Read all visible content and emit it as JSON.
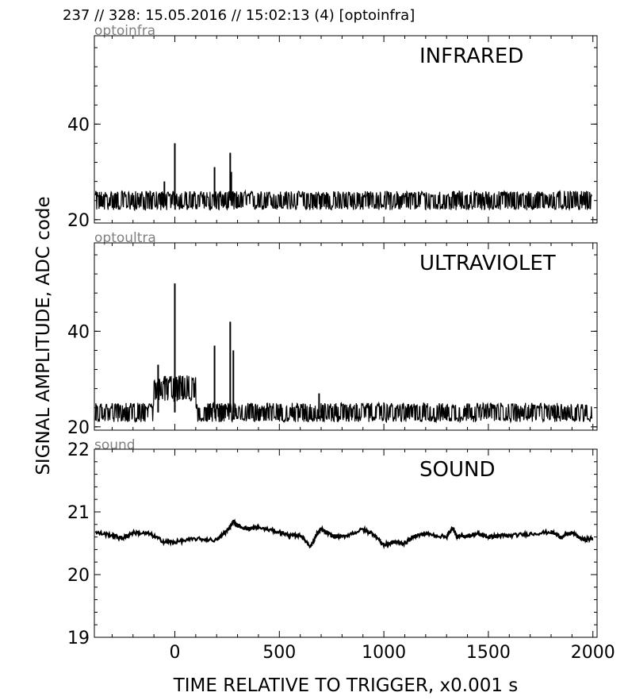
{
  "figure": {
    "header": "237 // 328:   15.05.2016 // 15:02:13 (4)  [optoinfra]",
    "ylabel": "SIGNAL AMPLITUDE,  ADC code",
    "xlabel": "TIME RELATIVE TO TRIGGER,   x0.001 s"
  },
  "chart_data": [
    {
      "type": "line",
      "source": "optoinfra",
      "title": "INFRARED",
      "xlim": [
        -385,
        2020
      ],
      "ylim": [
        19.3,
        58.5
      ],
      "x_ticks": [
        0,
        500,
        1000,
        1500,
        2000
      ],
      "y_ticks": [
        20,
        40
      ],
      "y_tick_labels": [
        "20",
        "40"
      ],
      "baseline": 24,
      "noise_band": [
        22,
        26
      ],
      "spikes": [
        {
          "x": 0,
          "y": 36
        },
        {
          "x": 190,
          "y": 31
        },
        {
          "x": 265,
          "y": 34
        },
        {
          "x": -50,
          "y": 28
        },
        {
          "x": 270,
          "y": 30
        }
      ]
    },
    {
      "type": "line",
      "source": "optoultra",
      "title": "ULTRAVIOLET",
      "xlim": [
        -385,
        2020
      ],
      "ylim": [
        19.3,
        58.5
      ],
      "x_ticks": [
        0,
        500,
        1000,
        1500,
        2000
      ],
      "y_ticks": [
        20,
        40
      ],
      "y_tick_labels": [
        "20",
        "40"
      ],
      "baseline": 23,
      "noise_band": [
        21,
        25
      ],
      "bump": {
        "from": -100,
        "to": 100,
        "level": 28
      },
      "spikes": [
        {
          "x": 0,
          "y": 50
        },
        {
          "x": -80,
          "y": 33
        },
        {
          "x": 190,
          "y": 37
        },
        {
          "x": 265,
          "y": 42
        },
        {
          "x": 280,
          "y": 36
        },
        {
          "x": 690,
          "y": 27
        }
      ]
    },
    {
      "type": "line",
      "source": "sound",
      "title": "SOUND",
      "xlim": [
        -385,
        2020
      ],
      "ylim": [
        19,
        22
      ],
      "x_ticks": [
        0,
        500,
        1000,
        1500,
        2000
      ],
      "x_tick_labels": [
        "0",
        "500",
        "1000",
        "1500",
        "2000"
      ],
      "y_ticks": [
        19,
        20,
        21,
        22
      ],
      "y_tick_labels": [
        "19",
        "20",
        "21",
        "22"
      ],
      "x": [
        -380,
        -300,
        -250,
        -200,
        -120,
        -50,
        0,
        100,
        200,
        250,
        280,
        300,
        350,
        400,
        500,
        550,
        600,
        650,
        680,
        700,
        750,
        800,
        900,
        950,
        1000,
        1050,
        1100,
        1150,
        1200,
        1300,
        1330,
        1350,
        1400,
        1450,
        1500,
        1550,
        1600,
        1700,
        1800,
        1850,
        1900,
        1950,
        2000
      ],
      "y": [
        20.67,
        20.63,
        20.58,
        20.67,
        20.65,
        20.52,
        20.52,
        20.57,
        20.55,
        20.7,
        20.85,
        20.78,
        20.73,
        20.75,
        20.68,
        20.62,
        20.63,
        20.45,
        20.65,
        20.72,
        20.62,
        20.6,
        20.72,
        20.65,
        20.47,
        20.52,
        20.5,
        20.62,
        20.65,
        20.6,
        20.75,
        20.6,
        20.62,
        20.65,
        20.6,
        20.62,
        20.62,
        20.65,
        20.68,
        20.6,
        20.67,
        20.56,
        20.57
      ]
    }
  ]
}
